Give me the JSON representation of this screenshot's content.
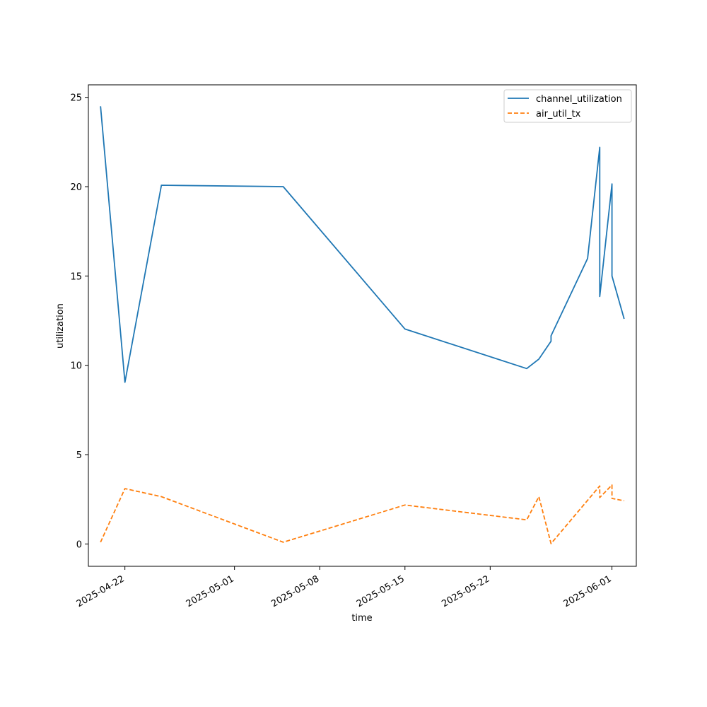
{
  "chart_data": {
    "type": "line",
    "xlabel": "time",
    "ylabel": "utilization",
    "x_is_date": true,
    "xlim": [
      "2025-04-19",
      "2025-06-03"
    ],
    "ylim": [
      -1.25,
      25.7
    ],
    "x_ticks": [
      "2025-04-22",
      "2025-05-01",
      "2025-05-08",
      "2025-05-15",
      "2025-05-22",
      "2025-06-01"
    ],
    "y_ticks": [
      0,
      5,
      10,
      15,
      20,
      25
    ],
    "grid": false,
    "legend_position": "top-right",
    "series": [
      {
        "name": "channel_utilization",
        "color": "#1f77b4",
        "style": "solid",
        "points": [
          {
            "x": "2025-04-20",
            "y": 24.5
          },
          {
            "x": "2025-04-22",
            "y": 9.05
          },
          {
            "x": "2025-04-25",
            "y": 20.08
          },
          {
            "x": "2025-05-05",
            "y": 20.0
          },
          {
            "x": "2025-05-15",
            "y": 12.03
          },
          {
            "x": "2025-05-25",
            "y": 9.82
          },
          {
            "x": "2025-05-26",
            "y": 10.35
          },
          {
            "x": "2025-05-27",
            "y": 11.35
          },
          {
            "x": "2025-05-27",
            "y": 11.65
          },
          {
            "x": "2025-05-30",
            "y": 15.98
          },
          {
            "x": "2025-05-31",
            "y": 22.2
          },
          {
            "x": "2025-05-31",
            "y": 18.9
          },
          {
            "x": "2025-05-31",
            "y": 13.85
          },
          {
            "x": "2025-06-01",
            "y": 20.15
          },
          {
            "x": "2025-06-01",
            "y": 15.0
          },
          {
            "x": "2025-06-02",
            "y": 12.6
          }
        ]
      },
      {
        "name": "air_util_tx",
        "color": "#ff7f0e",
        "style": "dashed",
        "points": [
          {
            "x": "2025-04-20",
            "y": 0.1
          },
          {
            "x": "2025-04-22",
            "y": 3.1
          },
          {
            "x": "2025-04-25",
            "y": 2.65
          },
          {
            "x": "2025-05-05",
            "y": 0.1
          },
          {
            "x": "2025-05-15",
            "y": 2.18
          },
          {
            "x": "2025-05-25",
            "y": 1.35
          },
          {
            "x": "2025-05-26",
            "y": 2.65
          },
          {
            "x": "2025-05-27",
            "y": 0.02
          },
          {
            "x": "2025-05-31",
            "y": 3.25
          },
          {
            "x": "2025-05-31",
            "y": 2.6
          },
          {
            "x": "2025-06-01",
            "y": 3.3
          },
          {
            "x": "2025-06-01",
            "y": 2.55
          },
          {
            "x": "2025-06-02",
            "y": 2.42
          }
        ]
      }
    ]
  }
}
